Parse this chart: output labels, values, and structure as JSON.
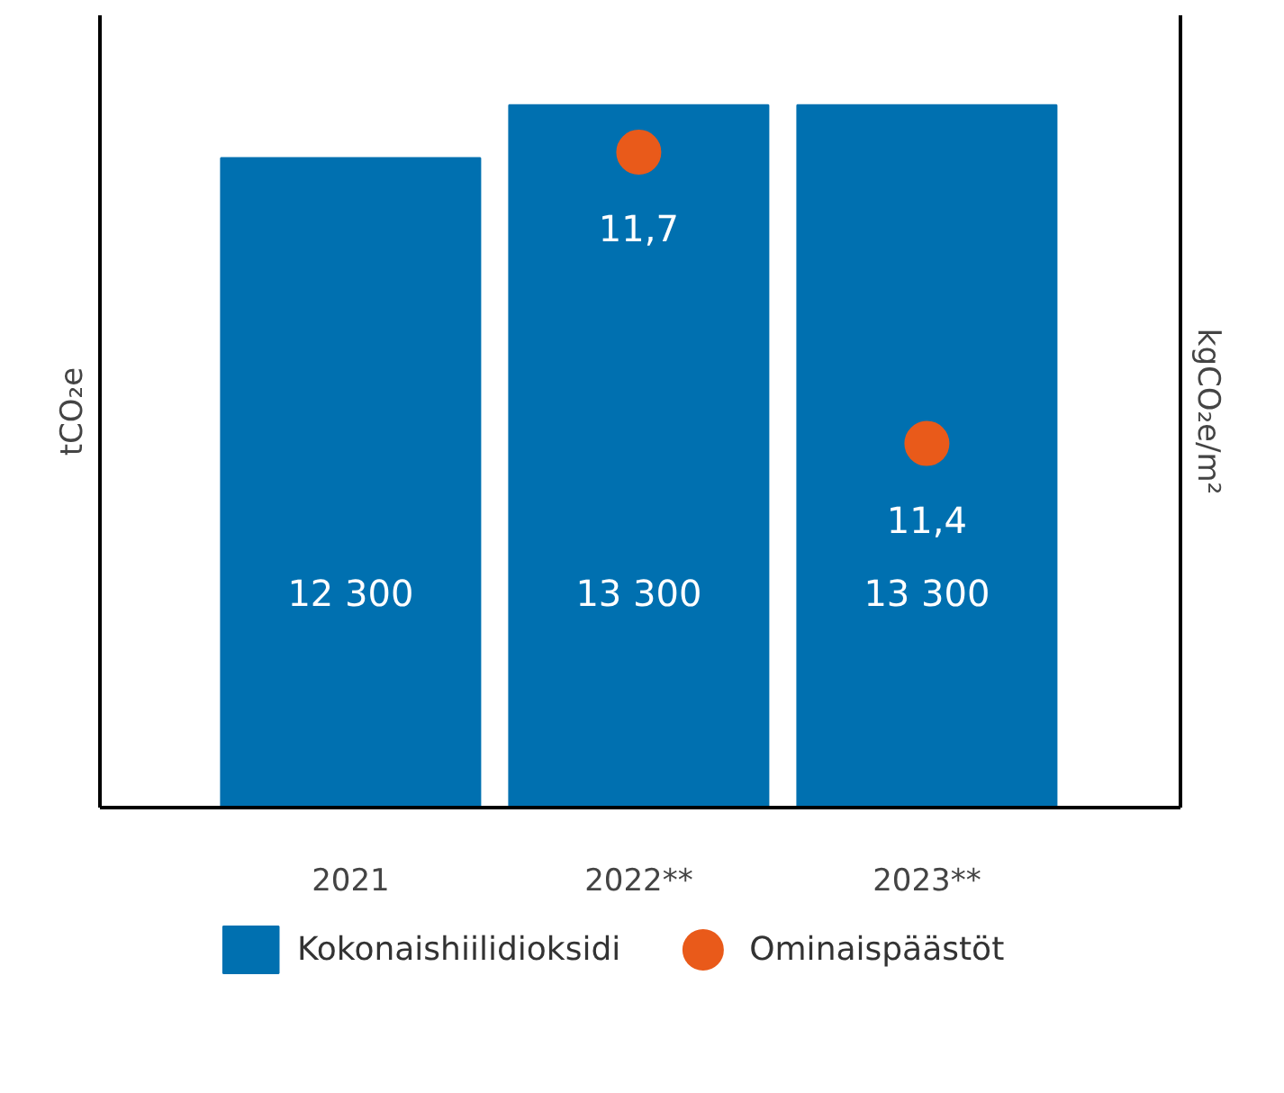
{
  "chart_data": {
    "type": "bar",
    "categories": [
      "2021",
      "2022**",
      "2023**"
    ],
    "ylabel": "tCO₂e",
    "y2label": "kgCO₂e/m²",
    "ylim": [
      0,
      15000
    ],
    "tick_labels": "x",
    "grid": false,
    "legend": "bottom",
    "series": [
      {
        "name": "Kokonaishiilidioksidi",
        "color": "#0070b0",
        "values": [
          12300,
          13300,
          13300
        ],
        "value_labels": [
          "12 300",
          "13 300",
          "13 300"
        ]
      },
      {
        "name": "Ominaispäästöt",
        "type": "scatter",
        "axis": "y2",
        "color": "#e95a1a",
        "marker": "circle",
        "values": [
          null,
          11.7,
          11.4
        ],
        "value_labels": [
          null,
          "11,7",
          "11,4"
        ]
      }
    ]
  }
}
